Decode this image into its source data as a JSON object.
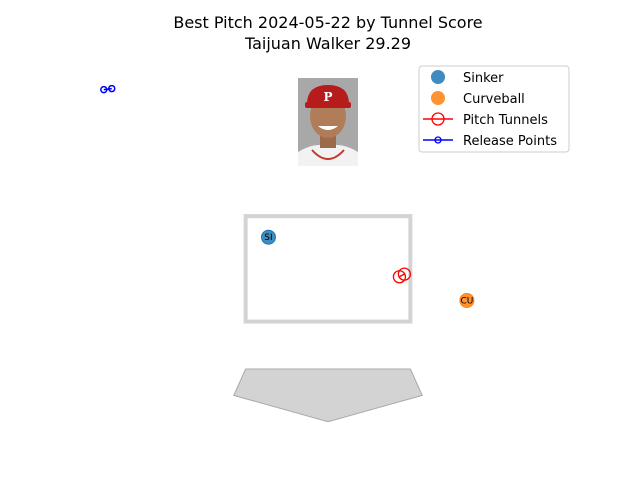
{
  "chart_data": {
    "type": "scatter",
    "title": "Best Pitch 2024-05-22 by Tunnel Score",
    "subtitle": "Taijuan Walker 29.29",
    "xlim": [
      -2.5,
      2.5
    ],
    "ylim": [
      -0.5,
      6.5
    ],
    "grid": false,
    "axes_visible": false,
    "legend_position": "upper-right",
    "strike_zone": {
      "x": [
        -0.83,
        0.83
      ],
      "y": [
        1.5,
        3.5
      ],
      "color": "#d3d3d3"
    },
    "home_plate": {
      "color": "#d3d3d3",
      "edge_color": "#a9a9a9"
    },
    "photo_alt": "Taijuan Walker",
    "series": [
      {
        "name": "Sinker",
        "label": "SI",
        "color": "#1f77b4",
        "points": [
          {
            "x": -0.6,
            "y": 3.1
          }
        ]
      },
      {
        "name": "Curveball",
        "label": "CU",
        "color": "#ff7f0e",
        "points": [
          {
            "x": 1.4,
            "y": 1.9
          }
        ]
      }
    ],
    "pitch_tunnels": {
      "name": "Pitch Tunnels",
      "color": "red",
      "points": [
        {
          "x": 0.72,
          "y": 2.35
        },
        {
          "x": 0.77,
          "y": 2.4
        }
      ]
    },
    "release_points": {
      "name": "Release Points",
      "color": "blue",
      "points": [
        {
          "x": -2.26,
          "y": 5.9
        },
        {
          "x": -2.18,
          "y": 5.92
        }
      ]
    },
    "legend": [
      {
        "label": "Sinker",
        "marker": "circle-filled",
        "color": "#1f77b4"
      },
      {
        "label": "Curveball",
        "marker": "circle-filled",
        "color": "#ff7f0e"
      },
      {
        "label": "Pitch Tunnels",
        "marker": "circle-open-line",
        "color": "red"
      },
      {
        "label": "Release Points",
        "marker": "circle-open-line-small",
        "color": "blue"
      }
    ]
  }
}
